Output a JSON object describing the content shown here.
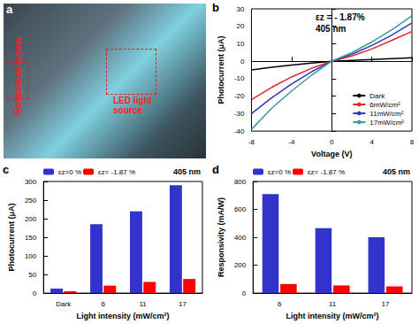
{
  "photo": {
    "panel": "a",
    "texts": [
      "Rotational screw",
      "LED light source"
    ]
  },
  "chart_data": [
    {
      "panel": "b",
      "type": "line",
      "annotations": [
        "εz = - 1.87%",
        "405 nm"
      ],
      "x_label": "Voltage (V)",
      "y_label": "Photocurrent (μA)",
      "x": [
        -8,
        -6,
        -4,
        -2,
        0,
        2,
        4,
        6,
        8
      ],
      "series": [
        {
          "name": "Dark",
          "color": "#000000",
          "values": [
            -5,
            -3.5,
            -2.2,
            -1,
            0,
            0.5,
            1,
            1.5,
            2
          ]
        },
        {
          "name": "6mW/cm²",
          "color": "#e8252a",
          "values": [
            -22,
            -15,
            -9,
            -4,
            0,
            3,
            7,
            12,
            17
          ]
        },
        {
          "name": "11mW/cm²",
          "color": "#2b3ab8",
          "values": [
            -30,
            -21,
            -13,
            -6,
            0,
            4,
            9,
            15,
            22
          ]
        },
        {
          "name": "17mW/cm²",
          "color": "#3a9a9a",
          "values": [
            -39,
            -27,
            -17,
            -8,
            0,
            5,
            11,
            18,
            26
          ]
        }
      ],
      "xlim": [
        -8,
        8
      ],
      "xticks": [
        -8,
        -4,
        0,
        4,
        8
      ],
      "ylim": [
        -40,
        30
      ],
      "yticks": [
        -40,
        -30,
        -20,
        -10,
        0,
        10,
        20,
        30
      ],
      "legend": "lower right",
      "marker": "none",
      "grid": false
    },
    {
      "panel": "c",
      "type": "bar",
      "annotations": [
        "405 nm"
      ],
      "x_label": "Light intensity (mW/cm²)",
      "y_label": "Photocurrent (μA)",
      "categories": [
        "Dark",
        "6",
        "11",
        "17"
      ],
      "series": [
        {
          "name": "εz=0 %",
          "color": "#3333cc",
          "values": [
            12,
            185,
            220,
            290
          ]
        },
        {
          "name": "εz= -1.87 %",
          "color": "#ff0000",
          "values": [
            5,
            20,
            30,
            38
          ]
        }
      ],
      "ylim": [
        0,
        300
      ],
      "yticks": [
        0,
        50,
        100,
        150,
        200,
        250,
        300
      ],
      "legend": "upper left",
      "grid": false
    },
    {
      "panel": "d",
      "type": "bar",
      "annotations": [
        "405 nm"
      ],
      "x_label": "Light intensity (mW/cm²)",
      "y_label": "Responsivity (mA/W)",
      "categories": [
        "6",
        "11",
        "17"
      ],
      "series": [
        {
          "name": "εz=0 %",
          "color": "#3333cc",
          "values": [
            710,
            465,
            400
          ]
        },
        {
          "name": "εz= -1.87 %",
          "color": "#ff0000",
          "values": [
            65,
            55,
            48
          ]
        }
      ],
      "ylim": [
        0,
        800
      ],
      "yticks": [
        0,
        200,
        400,
        600,
        800
      ],
      "legend": "upper left",
      "grid": false
    }
  ]
}
